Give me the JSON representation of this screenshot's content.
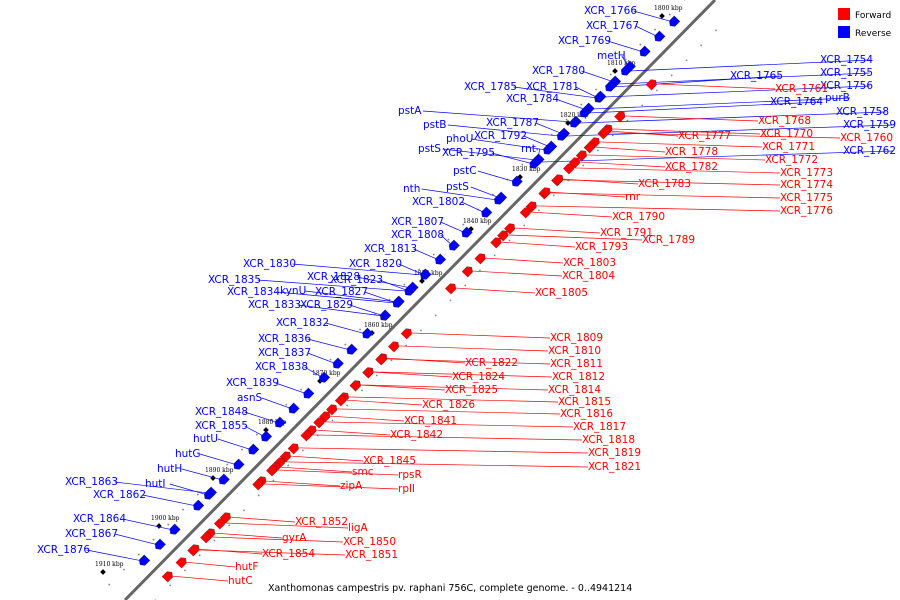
{
  "legend": {
    "forward": {
      "label": "Forward",
      "color": "#ff0000"
    },
    "reverse": {
      "label": "Reverse",
      "color": "#0000ff"
    }
  },
  "caption": "Xanthomonas campestris pv. raphani 756C, complete genome. - 0..4941214",
  "scale_labels": [
    "1800 kbp",
    "1810 kbp",
    "1820 kbp",
    "1830 kbp",
    "1840 kbp",
    "1850 kbp",
    "1860 kbp",
    "1870 kbp",
    "1880 kbp",
    "1890 kbp",
    "1900 kbp",
    "1910 kbp"
  ],
  "reverse_genes": [
    "XCR_1766",
    "XCR_1767",
    "XCR_1769",
    "metH",
    "XCR_1780",
    "XCR_1785",
    "XCR_1781",
    "XCR_1784",
    "pstA",
    "pstB",
    "XCR_1787",
    "phoU",
    "XCR_1792",
    "pstS",
    "rnt",
    "XCR_1795",
    "pstC",
    "pstS",
    "nth",
    "XCR_1802",
    "XCR_1807",
    "XCR_1808",
    "XCR_1813",
    "XCR_1830",
    "XCR_1820",
    "XCR_1828",
    "XCR_1835",
    "kynU",
    "XCR_1823",
    "XCR_1834",
    "XCR_1827",
    "XCR_1833",
    "XCR_1829",
    "XCR_1832",
    "XCR_1836",
    "XCR_1837",
    "XCR_1838",
    "XCR_1839",
    "asnS",
    "XCR_1848",
    "XCR_1855",
    "hutU",
    "hutG",
    "hutH",
    "XCR_1863",
    "hutI",
    "XCR_1862",
    "XCR_1864",
    "XCR_1867",
    "XCR_1876",
    "XCR_1754",
    "XCR_1755",
    "XCR_1765",
    "XCR_1756",
    "purB",
    "XCR_1764",
    "XCR_1758",
    "XCR_1759",
    "XCR_1762"
  ],
  "forward_genes": [
    "XCR_1761",
    "XCR_1768",
    "XCR_1760",
    "XCR_1770",
    "XCR_1777",
    "XCR_1771",
    "XCR_1778",
    "XCR_1772",
    "XCR_1773",
    "XCR_1782",
    "XCR_1774",
    "XCR_1783",
    "XCR_1775",
    "XCR_1776",
    "rnr",
    "XCR_1790",
    "XCR_1791",
    "XCR_1789",
    "XCR_1793",
    "XCR_1803",
    "XCR_1804",
    "XCR_1805",
    "XCR_1809",
    "XCR_1810",
    "XCR_1822",
    "XCR_1811",
    "XCR_1824",
    "XCR_1812",
    "XCR_1825",
    "XCR_1814",
    "XCR_1815",
    "XCR_1826",
    "XCR_1816",
    "XCR_1841",
    "XCR_1817",
    "XCR_1842",
    "XCR_1818",
    "XCR_1819",
    "XCR_1845",
    "XCR_1821",
    "smc",
    "rpsR",
    "zipA",
    "rplI",
    "ligA",
    "XCR_1852",
    "gyrA",
    "XCR_1850",
    "XCR_1851",
    "XCR_1854",
    "hutF",
    "hutC"
  ]
}
